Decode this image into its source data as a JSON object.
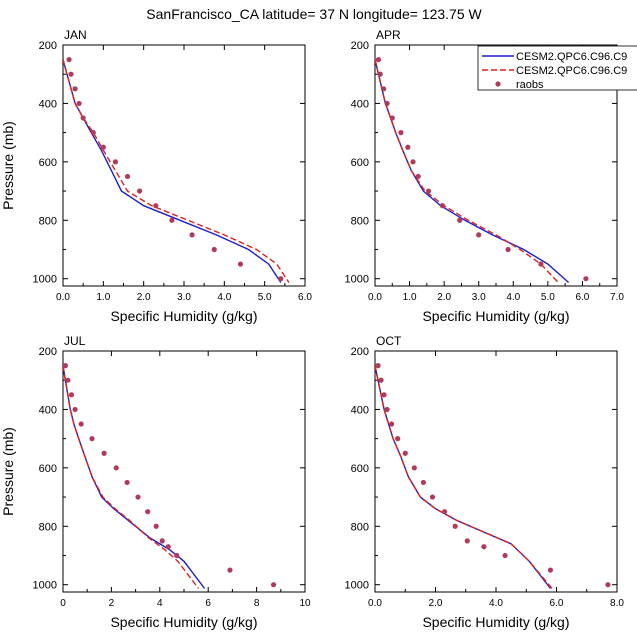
{
  "page": {
    "title": "SanFrancisco_CA  latitude= 37 N longitude= 123.75 W"
  },
  "colors": {
    "model_solid": "#1f1fcc",
    "model_dashed": "#e0201b",
    "obs": "#b03a5a",
    "axes": "#000000"
  },
  "legend": {
    "entries": [
      "CESM2.QPC6.C96.C9",
      "CESM2.QPC6.C96.C9",
      "raobs"
    ]
  },
  "chart_data": [
    {
      "type": "line",
      "panel_label": "JAN",
      "xlabel": "Specific Humidity (g/kg)",
      "ylabel": "Pressure (mb)",
      "xlim": [
        0,
        6
      ],
      "ylim": [
        200,
        1025
      ],
      "y_inverted": true,
      "xticks": [
        0,
        1,
        2,
        3,
        4,
        5,
        6
      ],
      "xtick_labels": [
        "0.0",
        "1.0",
        "2.0",
        "3.0",
        "4.0",
        "5.0",
        "6.0"
      ],
      "yticks": [
        200,
        400,
        600,
        800,
        1000
      ],
      "ytick_labels": [
        "200",
        "400",
        "600",
        "800",
        "1000"
      ],
      "series": [
        {
          "name": "CESM2.QPC6.C96.C9",
          "style": "solid",
          "x": [
            0.0,
            0.1,
            0.2,
            0.3,
            0.5,
            0.7,
            0.95,
            1.2,
            1.45,
            2.0,
            2.9,
            3.8,
            4.6,
            5.1,
            5.4
          ],
          "y": [
            250,
            300,
            350,
            400,
            450,
            500,
            560,
            630,
            700,
            750,
            800,
            850,
            900,
            950,
            1013
          ]
        },
        {
          "name": "CESM2.QPC6.C96.C9",
          "style": "dashed",
          "x": [
            0.0,
            0.1,
            0.2,
            0.3,
            0.5,
            0.75,
            1.0,
            1.3,
            1.6,
            2.2,
            3.1,
            4.0,
            4.8,
            5.3,
            5.6
          ],
          "y": [
            250,
            300,
            350,
            400,
            450,
            500,
            560,
            630,
            700,
            750,
            800,
            850,
            900,
            950,
            1013
          ]
        },
        {
          "name": "raobs",
          "style": "markers",
          "x": [
            0.15,
            0.2,
            0.3,
            0.4,
            0.5,
            0.75,
            1.0,
            1.3,
            1.6,
            1.9,
            2.3,
            2.7,
            3.2,
            3.75,
            4.4,
            5.4
          ],
          "y": [
            250,
            300,
            350,
            400,
            450,
            500,
            550,
            600,
            650,
            700,
            750,
            800,
            850,
            900,
            950,
            1000
          ]
        }
      ]
    },
    {
      "type": "line",
      "panel_label": "APR",
      "xlabel": "Specific Humidity (g/kg)",
      "ylabel": "",
      "xlim": [
        0,
        7
      ],
      "ylim": [
        200,
        1025
      ],
      "y_inverted": true,
      "xticks": [
        0,
        1,
        2,
        3,
        4,
        5,
        6,
        7
      ],
      "xtick_labels": [
        "0.0",
        "1.0",
        "2.0",
        "3.0",
        "4.0",
        "5.0",
        "6.0",
        "7.0"
      ],
      "yticks": [
        200,
        400,
        600,
        800,
        1000
      ],
      "ytick_labels": [
        "200",
        "400",
        "600",
        "800",
        "1000"
      ],
      "series": [
        {
          "name": "CESM2.QPC6.C96.C9",
          "style": "solid",
          "x": [
            0.0,
            0.1,
            0.2,
            0.3,
            0.45,
            0.6,
            0.8,
            1.05,
            1.4,
            1.9,
            2.6,
            3.4,
            4.3,
            5.0,
            5.6
          ],
          "y": [
            250,
            300,
            350,
            400,
            450,
            500,
            560,
            630,
            700,
            750,
            800,
            850,
            900,
            950,
            1013
          ]
        },
        {
          "name": "CESM2.QPC6.C96.C9",
          "style": "dashed",
          "x": [
            0.0,
            0.1,
            0.2,
            0.3,
            0.45,
            0.6,
            0.8,
            1.05,
            1.45,
            2.0,
            2.7,
            3.5,
            4.2,
            4.8,
            5.3
          ],
          "y": [
            250,
            300,
            350,
            400,
            450,
            500,
            560,
            630,
            700,
            750,
            800,
            850,
            900,
            950,
            1013
          ]
        },
        {
          "name": "raobs",
          "style": "markers",
          "x": [
            0.1,
            0.15,
            0.25,
            0.35,
            0.5,
            0.75,
            0.95,
            1.1,
            1.25,
            1.55,
            1.95,
            2.45,
            3.0,
            3.85,
            4.8,
            6.1
          ],
          "y": [
            250,
            300,
            350,
            400,
            450,
            500,
            550,
            600,
            650,
            700,
            750,
            800,
            850,
            900,
            950,
            1000
          ]
        }
      ]
    },
    {
      "type": "line",
      "panel_label": "JUL",
      "xlabel": "Specific Humidity (g/kg)",
      "ylabel": "Pressure (mb)",
      "xlim": [
        0,
        10
      ],
      "ylim": [
        200,
        1025
      ],
      "y_inverted": true,
      "xticks": [
        0,
        2,
        4,
        6,
        8,
        10
      ],
      "xtick_labels": [
        "0",
        "2",
        "4",
        "6",
        "8",
        "10"
      ],
      "yticks": [
        200,
        400,
        600,
        800,
        1000
      ],
      "ytick_labels": [
        "200",
        "400",
        "600",
        "800",
        "1000"
      ],
      "series": [
        {
          "name": "CESM2.QPC6.C96.C9",
          "style": "solid",
          "x": [
            0.0,
            0.1,
            0.2,
            0.3,
            0.45,
            0.65,
            0.9,
            1.2,
            1.6,
            2.1,
            2.7,
            3.6,
            4.4,
            5.0,
            5.85
          ],
          "y": [
            250,
            300,
            350,
            400,
            450,
            500,
            560,
            630,
            700,
            740,
            780,
            840,
            880,
            920,
            1013
          ]
        },
        {
          "name": "CESM2.QPC6.C96.C9",
          "style": "dashed",
          "x": [
            0.0,
            0.1,
            0.2,
            0.3,
            0.45,
            0.65,
            0.9,
            1.2,
            1.65,
            2.15,
            2.75,
            3.55,
            4.2,
            4.75,
            5.6
          ],
          "y": [
            250,
            300,
            350,
            400,
            450,
            500,
            560,
            630,
            700,
            740,
            780,
            840,
            880,
            920,
            1013
          ]
        },
        {
          "name": "raobs",
          "style": "markers",
          "x": [
            0.1,
            0.2,
            0.35,
            0.5,
            0.75,
            1.2,
            1.7,
            2.2,
            2.65,
            3.1,
            3.5,
            3.85,
            4.1,
            4.35,
            4.7,
            6.9,
            8.7
          ],
          "y": [
            250,
            300,
            350,
            400,
            450,
            500,
            550,
            600,
            650,
            700,
            750,
            800,
            850,
            870,
            900,
            950,
            1000
          ]
        }
      ]
    },
    {
      "type": "line",
      "panel_label": "OCT",
      "xlabel": "Specific Humidity (g/kg)",
      "ylabel": "",
      "xlim": [
        0,
        8
      ],
      "ylim": [
        200,
        1025
      ],
      "y_inverted": true,
      "xticks": [
        0,
        2,
        4,
        6,
        8
      ],
      "xtick_labels": [
        "0.0",
        "2.0",
        "4.0",
        "6.0",
        "8.0"
      ],
      "yticks": [
        200,
        400,
        600,
        800,
        1000
      ],
      "ytick_labels": [
        "200",
        "400",
        "600",
        "800",
        "1000"
      ],
      "series": [
        {
          "name": "CESM2.QPC6.C96.C9",
          "style": "solid",
          "x": [
            0.0,
            0.1,
            0.2,
            0.3,
            0.45,
            0.6,
            0.85,
            1.1,
            1.5,
            2.0,
            2.7,
            3.6,
            4.5,
            5.1,
            5.8
          ],
          "y": [
            250,
            300,
            350,
            400,
            450,
            500,
            560,
            630,
            700,
            740,
            780,
            820,
            860,
            920,
            1013
          ]
        },
        {
          "name": "CESM2.QPC6.C96.C9",
          "style": "dashed",
          "x": [
            0.0,
            0.1,
            0.2,
            0.3,
            0.45,
            0.6,
            0.85,
            1.1,
            1.5,
            2.0,
            2.7,
            3.6,
            4.5,
            5.1,
            5.85
          ],
          "y": [
            250,
            300,
            350,
            400,
            450,
            500,
            560,
            630,
            700,
            740,
            780,
            820,
            860,
            920,
            1013
          ]
        },
        {
          "name": "raobs",
          "style": "markers",
          "x": [
            0.1,
            0.2,
            0.3,
            0.4,
            0.55,
            0.75,
            1.0,
            1.3,
            1.6,
            1.9,
            2.3,
            2.65,
            3.05,
            3.6,
            4.3,
            5.8,
            7.7
          ],
          "y": [
            250,
            300,
            350,
            400,
            450,
            500,
            550,
            600,
            650,
            700,
            750,
            800,
            850,
            870,
            900,
            950,
            1000
          ]
        }
      ]
    }
  ]
}
